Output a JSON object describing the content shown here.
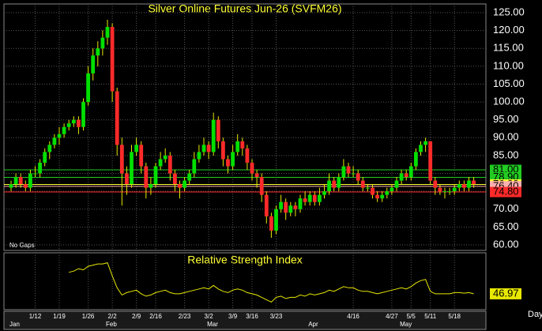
{
  "chart_data": [
    {
      "type": "candlestick",
      "title": "Silver Online Futures Jun-26 (SVFM26)",
      "note": "No Gaps",
      "categories": [
        null,
        null,
        null,
        null,
        null,
        "1/12",
        null,
        null,
        null,
        null,
        "1/19",
        null,
        null,
        null,
        null,
        null,
        "1/26",
        null,
        null,
        null,
        null,
        "2/2",
        null,
        null,
        null,
        null,
        "2/9",
        null,
        null,
        null,
        "2/16",
        null,
        null,
        null,
        null,
        null,
        "2/23",
        null,
        null,
        null,
        null,
        "3/2",
        null,
        null,
        null,
        null,
        "3/9",
        null,
        null,
        null,
        "3/16",
        null,
        null,
        null,
        null,
        "3/23",
        null,
        null,
        null,
        null,
        null,
        null,
        null,
        null,
        null,
        null,
        null,
        null,
        null,
        null,
        null,
        "4/16",
        null,
        null,
        null,
        null,
        null,
        null,
        null,
        "4/27",
        null,
        null,
        null,
        "5/5",
        null,
        null,
        null,
        "5/11",
        null,
        null,
        null,
        null,
        "5/18",
        null,
        null,
        null,
        null,
        null
      ],
      "months": [
        "Jan",
        null,
        null,
        null,
        null,
        null,
        null,
        null,
        null,
        null,
        null,
        null,
        null,
        null,
        null,
        null,
        null,
        null,
        null,
        null,
        "Feb",
        null,
        null,
        null,
        null,
        null,
        null,
        null,
        null,
        null,
        null,
        null,
        null,
        null,
        null,
        null,
        null,
        null,
        null,
        null,
        null,
        "Mar",
        null,
        null,
        null,
        null,
        null,
        null,
        null,
        null,
        null,
        null,
        null,
        null,
        null,
        null,
        null,
        null,
        null,
        null,
        null,
        null,
        "Apr",
        null,
        null,
        null,
        null,
        null,
        null,
        null,
        null,
        null,
        null,
        null,
        null,
        null,
        null,
        null,
        null,
        null,
        null,
        "May",
        null,
        null,
        null,
        null,
        null,
        null,
        null,
        null,
        null,
        null,
        null,
        null,
        null,
        null,
        null
      ],
      "ohlc": [
        [
          76,
          78,
          75,
          77
        ],
        [
          77,
          80,
          76,
          79
        ],
        [
          79,
          80,
          76,
          77
        ],
        [
          77,
          78,
          75,
          76
        ],
        [
          76,
          81,
          75,
          80
        ],
        [
          80,
          82,
          79,
          80
        ],
        [
          80,
          84,
          79,
          83
        ],
        [
          83,
          87,
          82,
          86
        ],
        [
          86,
          89,
          84,
          88
        ],
        [
          88,
          91,
          87,
          90
        ],
        [
          90,
          93,
          88,
          91
        ],
        [
          91,
          94,
          90,
          93
        ],
        [
          93,
          95,
          92,
          94
        ],
        [
          94,
          96,
          93,
          95
        ],
        [
          95,
          96,
          91,
          93
        ],
        [
          93,
          101,
          92,
          100
        ],
        [
          100,
          110,
          99,
          108
        ],
        [
          108,
          115,
          106,
          113
        ],
        [
          113,
          117,
          110,
          115
        ],
        [
          115,
          120,
          113,
          118
        ],
        [
          118,
          123,
          116,
          121
        ],
        [
          121,
          122,
          100,
          103
        ],
        [
          103,
          104,
          85,
          88
        ],
        [
          88,
          90,
          71,
          80
        ],
        [
          80,
          82,
          74,
          77
        ],
        [
          77,
          88,
          76,
          86
        ],
        [
          86,
          90,
          85,
          88
        ],
        [
          88,
          89,
          80,
          82
        ],
        [
          82,
          83,
          73,
          76
        ],
        [
          76,
          79,
          74,
          77
        ],
        [
          77,
          83,
          76,
          82
        ],
        [
          82,
          86,
          81,
          84
        ],
        [
          84,
          87,
          83,
          85
        ],
        [
          85,
          86,
          78,
          80
        ],
        [
          80,
          81,
          75,
          77
        ],
        [
          77,
          78,
          73,
          76
        ],
        [
          76,
          79,
          75,
          78
        ],
        [
          78,
          81,
          77,
          80
        ],
        [
          80,
          86,
          79,
          84
        ],
        [
          84,
          88,
          83,
          86
        ],
        [
          86,
          90,
          85,
          88
        ],
        [
          88,
          89,
          84,
          86
        ],
        [
          86,
          97,
          85,
          95
        ],
        [
          95,
          96,
          87,
          89
        ],
        [
          89,
          90,
          82,
          84
        ],
        [
          84,
          85,
          80,
          82
        ],
        [
          82,
          88,
          81,
          86
        ],
        [
          86,
          91,
          85,
          89
        ],
        [
          89,
          90,
          85,
          87
        ],
        [
          87,
          88,
          81,
          83
        ],
        [
          83,
          84,
          78,
          80
        ],
        [
          80,
          81,
          76,
          79
        ],
        [
          79,
          80,
          72,
          74
        ],
        [
          74,
          75,
          66,
          68
        ],
        [
          68,
          69,
          62,
          64
        ],
        [
          64,
          71,
          63,
          70
        ],
        [
          70,
          74,
          69,
          72
        ],
        [
          72,
          73,
          67,
          69
        ],
        [
          69,
          72,
          68,
          71
        ],
        [
          71,
          72,
          68,
          70
        ],
        [
          70,
          74,
          69,
          73
        ],
        [
          73,
          75,
          71,
          72
        ],
        [
          72,
          75,
          71,
          74
        ],
        [
          74,
          75,
          71,
          72
        ],
        [
          72,
          76,
          71,
          74
        ],
        [
          74,
          77,
          73,
          75
        ],
        [
          75,
          80,
          74,
          78
        ],
        [
          78,
          79,
          75,
          76
        ],
        [
          76,
          80,
          75,
          79
        ],
        [
          79,
          84,
          78,
          82
        ],
        [
          82,
          83,
          79,
          80
        ],
        [
          80,
          82,
          79,
          80
        ],
        [
          80,
          81,
          77,
          78
        ],
        [
          78,
          79,
          75,
          76
        ],
        [
          76,
          77,
          75,
          76
        ],
        [
          76,
          77,
          73,
          74
        ],
        [
          74,
          75,
          72,
          73
        ],
        [
          73,
          75,
          72,
          74
        ],
        [
          74,
          76,
          73,
          75
        ],
        [
          75,
          77,
          74,
          76
        ],
        [
          76,
          79,
          75,
          78
        ],
        [
          78,
          81,
          77,
          80
        ],
        [
          80,
          81,
          78,
          79
        ],
        [
          79,
          83,
          78,
          82
        ],
        [
          82,
          87,
          81,
          86
        ],
        [
          86,
          89,
          85,
          88
        ],
        [
          88,
          90,
          86,
          89
        ],
        [
          89,
          89,
          77,
          78
        ],
        [
          78,
          79,
          74,
          76
        ],
        [
          76,
          77,
          74,
          75
        ],
        [
          75,
          76,
          73,
          75
        ],
        [
          75,
          76,
          74,
          75
        ],
        [
          75,
          77,
          74,
          76
        ],
        [
          76,
          78,
          75,
          77
        ],
        [
          77,
          78,
          75,
          76
        ],
        [
          76,
          79,
          75,
          78
        ],
        [
          78,
          79,
          76,
          77
        ]
      ],
      "up_color": "#00e000",
      "down_color": "#ff2a2a",
      "wick_color": "#e8e800",
      "ylim": [
        60,
        125
      ],
      "yticks": [
        {
          "value": 125,
          "label": "125.00"
        },
        {
          "value": 120,
          "label": "120.00"
        },
        {
          "value": 115,
          "label": "115.00"
        },
        {
          "value": 110,
          "label": "110.00"
        },
        {
          "value": 105,
          "label": "105.00"
        },
        {
          "value": 100,
          "label": "100.00"
        },
        {
          "value": 95,
          "label": "95.00"
        },
        {
          "value": 90,
          "label": "90.00"
        },
        {
          "value": 85,
          "label": "85.00"
        },
        {
          "value": 80,
          "label": "80.00"
        },
        {
          "value": 75,
          "label": "75.00"
        },
        {
          "value": 70,
          "label": "70.00"
        },
        {
          "value": 65,
          "label": "65.00"
        },
        {
          "value": 60,
          "label": "60.00"
        }
      ],
      "levels": [
        {
          "value": 81,
          "label": "81.00",
          "color": "#22cc22"
        },
        {
          "value": 78.9,
          "label": "78.90",
          "color": "#22cc22"
        },
        {
          "value": 76.9,
          "label": "76.90",
          "color": "#ffff33"
        },
        {
          "value": 76.4,
          "label": "76.40",
          "color": "#ffb0b0"
        },
        {
          "value": 74.8,
          "label": "74.80",
          "color": "#ff2a2a"
        }
      ],
      "grid": true,
      "x_unit": "Day"
    },
    {
      "type": "line",
      "title": "Relative Strength Index",
      "color": "#e8e800",
      "ylim": [
        35,
        80
      ],
      "values": [
        null,
        null,
        null,
        null,
        null,
        null,
        null,
        null,
        null,
        null,
        null,
        null,
        65,
        66,
        68,
        67,
        70,
        71,
        72,
        72,
        73,
        62,
        52,
        46,
        48,
        49,
        50,
        47,
        45,
        46,
        48,
        49,
        50,
        48,
        47,
        47,
        48,
        49,
        50,
        51,
        52,
        51,
        54,
        51,
        49,
        48,
        50,
        51,
        50,
        48,
        47,
        46,
        44,
        42,
        40,
        44,
        45,
        43,
        44,
        44,
        46,
        45,
        47,
        46,
        47,
        48,
        50,
        49,
        51,
        53,
        52,
        52,
        50,
        49,
        49,
        48,
        47,
        48,
        49,
        50,
        51,
        52,
        51,
        53,
        56,
        58,
        59,
        49,
        47,
        47,
        47,
        47,
        48,
        48,
        47.5,
        48,
        46.97
      ]
    }
  ]
}
